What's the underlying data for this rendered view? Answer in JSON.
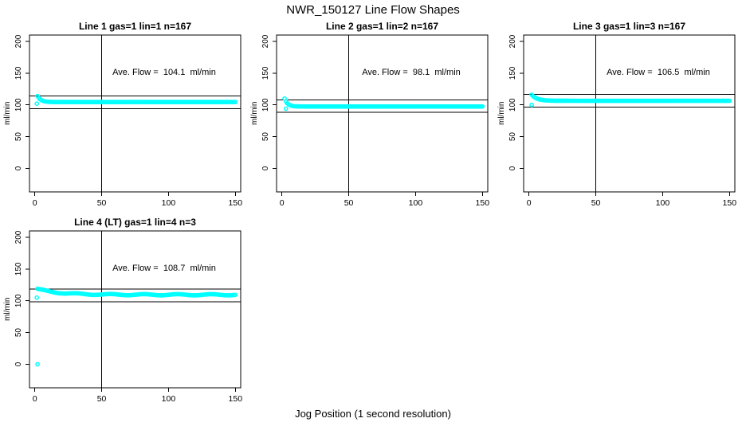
{
  "figure": {
    "title": "NWR_150127  Line Flow Shapes",
    "xlabel": "Jog Position (1 second resolution)"
  },
  "chart_data": {
    "type": "scatter",
    "title": "NWR_150127  Line Flow Shapes",
    "xlabel": "Jog Position (1 second resolution)",
    "ylabel": "ml/min",
    "x_ticks": [
      0,
      50,
      100,
      150
    ],
    "y_ticks": [
      0,
      50,
      100,
      150,
      200
    ],
    "x_range": [
      -4,
      154
    ],
    "y_range": [
      -37,
      210
    ],
    "grid": false,
    "point_color": "#00FFFF",
    "point_style": "open-circle",
    "layout": "2x2 grid, bottom-right cell empty",
    "panels": [
      {
        "title": "Line 1 gas=1 lin=1 n=167",
        "n": 167,
        "ave_flow": 104.1,
        "ave_flow_label": "Ave. Flow =  104.1  ml/min",
        "vline_x": 50,
        "ref_line_upper": 114.1,
        "ref_line_lower": 94.1,
        "series_model": {
          "type": "exponential_decay",
          "x_start": 2,
          "x_end": 150,
          "step": 1,
          "start": 114,
          "settle": 104.5,
          "tau": 2.5,
          "wobble": 0
        },
        "outliers": [
          [
            1.5,
            102
          ]
        ]
      },
      {
        "title": "Line 2 gas=1 lin=2 n=167",
        "n": 167,
        "ave_flow": 98.1,
        "ave_flow_label": "Ave. Flow =  98.1  ml/min",
        "vline_x": 50,
        "ref_line_upper": 108.1,
        "ref_line_lower": 88.1,
        "series_model": {
          "type": "exponential_decay",
          "x_start": 2,
          "x_end": 150,
          "step": 1,
          "start": 110,
          "settle": 97.5,
          "tau": 2.2,
          "wobble": 0
        },
        "outliers": [
          [
            3,
            94
          ]
        ]
      },
      {
        "title": "Line 3 gas=1 lin=3 n=167",
        "n": 167,
        "ave_flow": 106.5,
        "ave_flow_label": "Ave. Flow =  106.5  ml/min",
        "vline_x": 50,
        "ref_line_upper": 116.5,
        "ref_line_lower": 96.5,
        "series_model": {
          "type": "exponential_decay",
          "x_start": 2,
          "x_end": 150,
          "step": 1,
          "start": 116,
          "settle": 106.5,
          "tau": 4,
          "wobble": 0
        },
        "outliers": [
          [
            2,
            100
          ]
        ]
      },
      {
        "title": "Line 4 (LT) gas=1 lin=4 n=3",
        "n": 3,
        "ave_flow": 108.7,
        "ave_flow_label": "Ave. Flow =  108.7  ml/min",
        "vline_x": 50,
        "ref_line_upper": 118.7,
        "ref_line_lower": 98.7,
        "series_model": {
          "type": "exponential_decay",
          "x_start": 2,
          "x_end": 150,
          "step": 1,
          "start": 118.5,
          "settle": 109.5,
          "tau": 16,
          "wobble": 1
        },
        "outliers": [
          [
            2,
            0
          ],
          [
            1.5,
            105
          ]
        ]
      }
    ]
  }
}
